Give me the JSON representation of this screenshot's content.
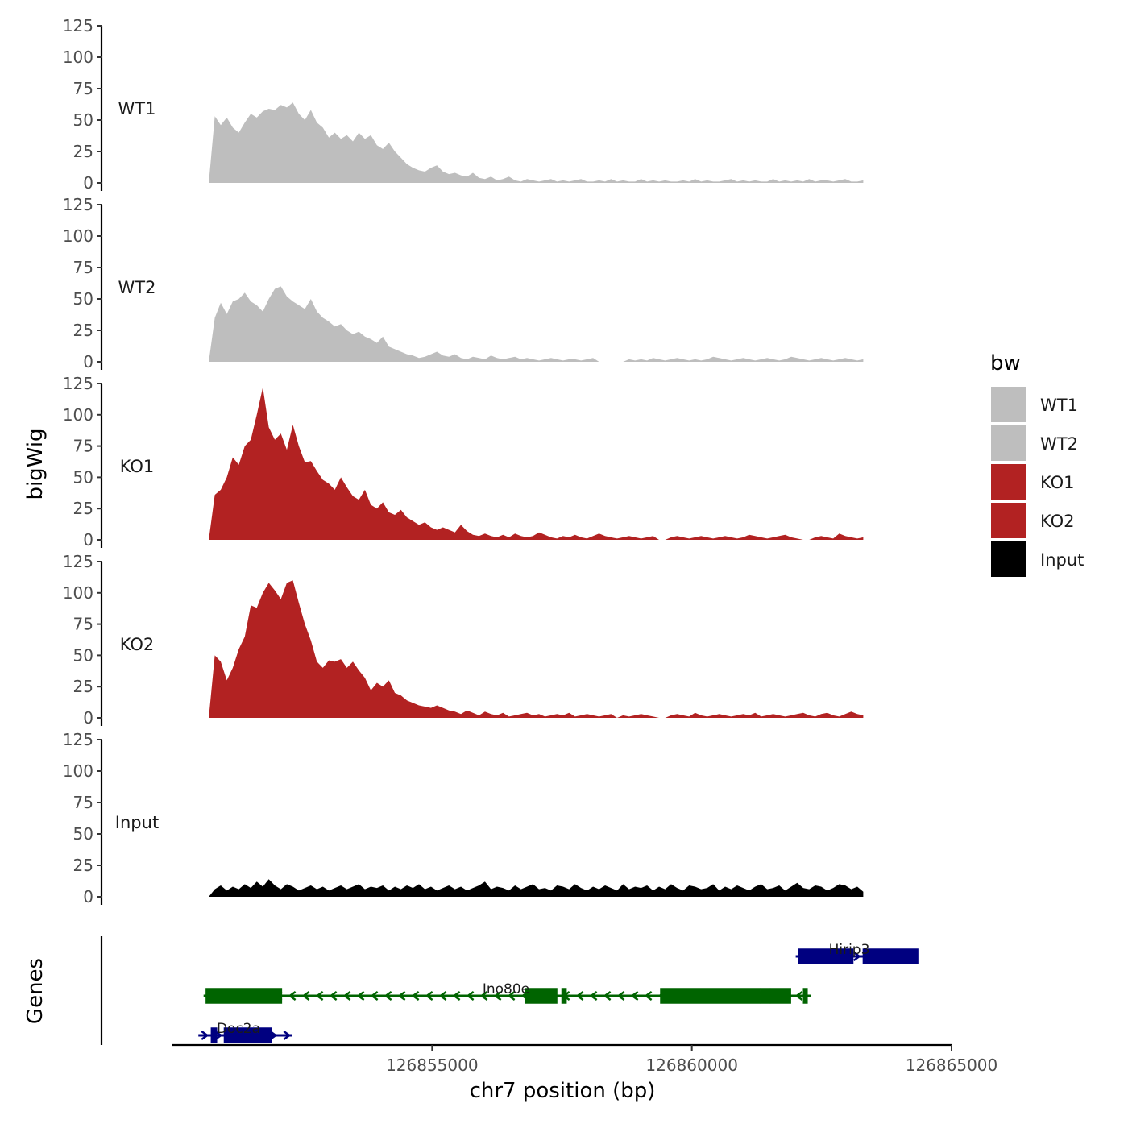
{
  "chart_data": {
    "type": "area",
    "ylabel": "bigWig",
    "genes_label": "Genes",
    "xlabel": "chr7 position (bp)",
    "x_ticks": [
      126855000,
      126860000,
      126865000
    ],
    "x_tick_labels": [
      "126855000",
      "126860000",
      "126865000"
    ],
    "xlim": [
      126850000,
      126865000
    ],
    "ylim": [
      0,
      125
    ],
    "y_ticks": [
      0,
      25,
      50,
      75,
      100,
      125
    ],
    "y_tick_labels": [
      "0",
      "25",
      "50",
      "75",
      "100",
      "125"
    ],
    "grid": false,
    "legend": {
      "title": "bw",
      "position": "right",
      "entries": [
        {
          "label": "WT1",
          "color": "#bebebe"
        },
        {
          "label": "WT2",
          "color": "#bebebe"
        },
        {
          "label": "KO1",
          "color": "#b22222"
        },
        {
          "label": "KO2",
          "color": "#b22222"
        },
        {
          "label": "Input",
          "color": "#000000"
        }
      ]
    },
    "signal_range": [
      126850700,
      126863300
    ],
    "series": [
      {
        "name": "WT1",
        "color": "#bebebe",
        "values": [
          0,
          53,
          46,
          52,
          44,
          40,
          48,
          55,
          52,
          57,
          59,
          58,
          62,
          60,
          64,
          55,
          50,
          58,
          48,
          44,
          36,
          40,
          35,
          38,
          33,
          40,
          35,
          38,
          30,
          27,
          32,
          25,
          20,
          15,
          12,
          10,
          9,
          12,
          14,
          9,
          7,
          8,
          6,
          5,
          8,
          4,
          3,
          5,
          2,
          3,
          5,
          2,
          1,
          3,
          2,
          1,
          2,
          3,
          1,
          2,
          1,
          2,
          3,
          1,
          1,
          2,
          1,
          3,
          1,
          2,
          1,
          1,
          3,
          1,
          2,
          1,
          2,
          1,
          1,
          2,
          1,
          3,
          1,
          2,
          1,
          1,
          2,
          3,
          1,
          2,
          1,
          2,
          1,
          1,
          3,
          1,
          2,
          1,
          2,
          1,
          3,
          1,
          2,
          2,
          1,
          2,
          3,
          1,
          1,
          2
        ]
      },
      {
        "name": "WT2",
        "color": "#bebebe",
        "values": [
          0,
          35,
          47,
          38,
          48,
          50,
          55,
          48,
          45,
          40,
          50,
          58,
          60,
          52,
          48,
          45,
          42,
          50,
          40,
          35,
          32,
          28,
          30,
          25,
          22,
          24,
          20,
          18,
          15,
          20,
          12,
          10,
          8,
          6,
          5,
          3,
          4,
          6,
          8,
          5,
          4,
          6,
          3,
          2,
          4,
          3,
          2,
          5,
          3,
          2,
          3,
          4,
          2,
          3,
          2,
          1,
          2,
          3,
          2,
          1,
          2,
          2,
          1,
          2,
          3,
          0,
          0,
          0,
          0,
          0,
          2,
          1,
          2,
          1,
          3,
          2,
          1,
          2,
          3,
          2,
          1,
          2,
          1,
          2,
          4,
          3,
          2,
          1,
          2,
          3,
          2,
          1,
          2,
          3,
          2,
          1,
          2,
          4,
          3,
          2,
          1,
          2,
          3,
          2,
          1,
          2,
          3,
          2,
          1,
          2
        ]
      },
      {
        "name": "KO1",
        "color": "#b22222",
        "values": [
          0,
          36,
          40,
          50,
          66,
          60,
          75,
          80,
          100,
          122,
          90,
          80,
          85,
          72,
          92,
          75,
          62,
          63,
          55,
          48,
          45,
          40,
          50,
          42,
          35,
          32,
          40,
          28,
          25,
          30,
          22,
          20,
          24,
          18,
          15,
          12,
          14,
          10,
          8,
          10,
          8,
          6,
          12,
          7,
          4,
          3,
          5,
          3,
          2,
          4,
          2,
          5,
          3,
          2,
          3,
          6,
          4,
          2,
          1,
          3,
          2,
          4,
          2,
          1,
          3,
          5,
          3,
          2,
          1,
          2,
          3,
          2,
          1,
          2,
          3,
          0,
          0,
          2,
          3,
          2,
          1,
          2,
          3,
          2,
          1,
          2,
          3,
          2,
          1,
          2,
          4,
          3,
          2,
          1,
          2,
          3,
          4,
          2,
          1,
          0,
          0,
          2,
          3,
          2,
          1,
          5,
          3,
          2,
          1,
          2
        ]
      },
      {
        "name": "KO2",
        "color": "#b22222",
        "values": [
          0,
          50,
          45,
          30,
          40,
          55,
          65,
          90,
          88,
          100,
          108,
          102,
          95,
          108,
          110,
          92,
          75,
          62,
          45,
          40,
          46,
          45,
          47,
          40,
          45,
          38,
          32,
          22,
          28,
          25,
          30,
          20,
          18,
          14,
          12,
          10,
          9,
          8,
          10,
          8,
          6,
          5,
          3,
          6,
          4,
          2,
          5,
          3,
          2,
          4,
          1,
          2,
          3,
          4,
          2,
          3,
          1,
          2,
          3,
          2,
          4,
          1,
          2,
          3,
          2,
          1,
          2,
          3,
          0,
          2,
          1,
          2,
          3,
          2,
          1,
          0,
          0,
          2,
          3,
          2,
          1,
          4,
          2,
          1,
          2,
          3,
          2,
          1,
          2,
          3,
          2,
          4,
          1,
          2,
          3,
          2,
          1,
          2,
          3,
          4,
          2,
          1,
          3,
          4,
          2,
          1,
          3,
          5,
          3,
          2
        ]
      },
      {
        "name": "Input",
        "color": "#000000",
        "values": [
          0,
          6,
          9,
          5,
          8,
          6,
          10,
          7,
          12,
          8,
          14,
          9,
          6,
          10,
          8,
          5,
          7,
          9,
          6,
          8,
          5,
          7,
          9,
          6,
          8,
          10,
          6,
          8,
          7,
          9,
          5,
          8,
          6,
          9,
          7,
          10,
          6,
          8,
          5,
          7,
          9,
          6,
          8,
          5,
          7,
          9,
          12,
          6,
          8,
          7,
          5,
          9,
          6,
          8,
          10,
          6,
          7,
          5,
          9,
          8,
          6,
          10,
          7,
          5,
          8,
          6,
          9,
          7,
          5,
          10,
          6,
          8,
          7,
          9,
          5,
          8,
          6,
          10,
          7,
          5,
          9,
          8,
          6,
          7,
          10,
          5,
          8,
          6,
          9,
          7,
          5,
          8,
          10,
          6,
          7,
          9,
          5,
          8,
          11,
          7,
          6,
          9,
          8,
          5,
          7,
          10,
          9,
          6,
          8,
          4
        ]
      }
    ],
    "genes": [
      {
        "name": "Hirip3",
        "strand": "+",
        "color": "#000080",
        "row": 1,
        "start": 126862000,
        "end": 126864350,
        "exons": [
          [
            126862050,
            126863100
          ],
          [
            126863300,
            126864350
          ]
        ]
      },
      {
        "name": "Ino80e",
        "strand": "-",
        "color": "#006400",
        "row": 2,
        "start": 126850600,
        "end": 126862300,
        "exons": [
          [
            126850650,
            126852100
          ],
          [
            126856800,
            126857400
          ],
          [
            126857500,
            126857580
          ],
          [
            126859400,
            126861300
          ],
          [
            126861320,
            126861500
          ],
          [
            126861520,
            126861900
          ],
          [
            126862150,
            126862220
          ]
        ]
      },
      {
        "name": "Doc2a",
        "strand": "+",
        "color": "#000080",
        "row": 3,
        "start": 126850500,
        "end": 126852300,
        "exons": [
          [
            126850750,
            126850850
          ],
          [
            126851000,
            126851900
          ]
        ]
      }
    ]
  }
}
